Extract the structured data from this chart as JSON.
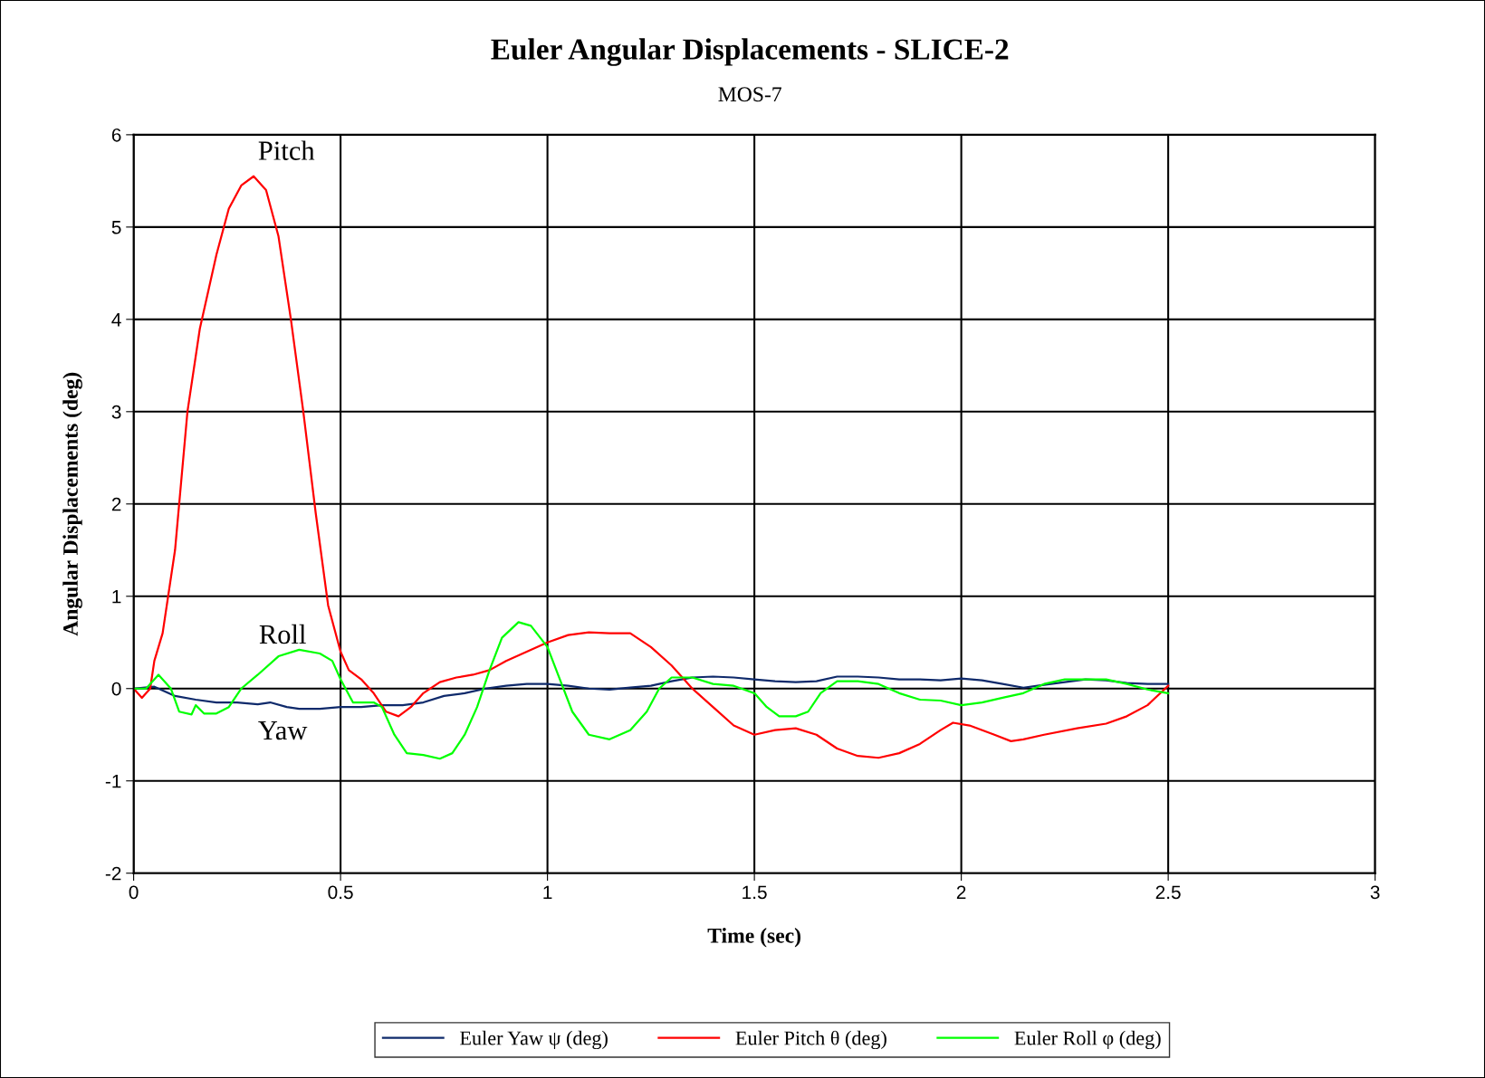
{
  "chart_data": {
    "type": "line",
    "title": "Euler Angular Displacements - SLICE-2",
    "subtitle": "MOS-7",
    "xlabel": "Time (sec)",
    "ylabel": "Angular Displacements (deg)",
    "xlim": [
      0,
      3
    ],
    "xticks": [
      0,
      0.5,
      1,
      1.5,
      2,
      2.5,
      3
    ],
    "ylim": [
      -2,
      6
    ],
    "yticks": [
      -2,
      -1,
      0,
      1,
      2,
      3,
      4,
      5,
      6
    ],
    "grid": true,
    "legend": "bottom",
    "marker": "none",
    "line_style": "solid",
    "annotations": [
      "Pitch",
      "Roll",
      "Yaw"
    ],
    "series": [
      {
        "name": "Euler Yaw ψ (deg)",
        "color": "#0f2a6b",
        "x": [
          0,
          0.05,
          0.1,
          0.15,
          0.2,
          0.25,
          0.3,
          0.33,
          0.37,
          0.4,
          0.45,
          0.5,
          0.55,
          0.6,
          0.65,
          0.7,
          0.75,
          0.8,
          0.85,
          0.9,
          0.95,
          1.0,
          1.05,
          1.1,
          1.15,
          1.2,
          1.25,
          1.3,
          1.35,
          1.4,
          1.45,
          1.5,
          1.55,
          1.6,
          1.65,
          1.7,
          1.75,
          1.8,
          1.85,
          1.9,
          1.95,
          2.0,
          2.05,
          2.1,
          2.15,
          2.2,
          2.25,
          2.3,
          2.35,
          2.4,
          2.45,
          2.5
        ],
        "values": [
          0,
          0.02,
          -0.08,
          -0.12,
          -0.15,
          -0.15,
          -0.17,
          -0.15,
          -0.2,
          -0.22,
          -0.22,
          -0.2,
          -0.2,
          -0.18,
          -0.18,
          -0.15,
          -0.08,
          -0.05,
          0.0,
          0.03,
          0.05,
          0.05,
          0.03,
          0.0,
          -0.01,
          0.01,
          0.03,
          0.08,
          0.12,
          0.13,
          0.12,
          0.1,
          0.08,
          0.07,
          0.08,
          0.13,
          0.13,
          0.12,
          0.1,
          0.1,
          0.09,
          0.11,
          0.09,
          0.05,
          0.01,
          0.04,
          0.07,
          0.1,
          0.09,
          0.06,
          0.05,
          0.05
        ]
      },
      {
        "name": "Euler Pitch θ (deg)",
        "color": "#ff0000",
        "x": [
          0,
          0.02,
          0.04,
          0.05,
          0.07,
          0.1,
          0.13,
          0.16,
          0.2,
          0.23,
          0.26,
          0.29,
          0.32,
          0.35,
          0.38,
          0.41,
          0.44,
          0.47,
          0.5,
          0.52,
          0.55,
          0.58,
          0.61,
          0.64,
          0.67,
          0.7,
          0.74,
          0.78,
          0.82,
          0.86,
          0.9,
          0.95,
          1.0,
          1.05,
          1.1,
          1.15,
          1.2,
          1.25,
          1.3,
          1.35,
          1.4,
          1.45,
          1.5,
          1.55,
          1.6,
          1.65,
          1.7,
          1.75,
          1.8,
          1.85,
          1.9,
          1.95,
          1.98,
          2.02,
          2.08,
          2.12,
          2.15,
          2.2,
          2.28,
          2.35,
          2.4,
          2.45,
          2.5
        ],
        "values": [
          0,
          -0.1,
          0,
          0.3,
          0.6,
          1.5,
          3.0,
          3.9,
          4.7,
          5.2,
          5.45,
          5.55,
          5.4,
          4.9,
          4.0,
          3.0,
          1.9,
          0.9,
          0.4,
          0.2,
          0.1,
          -0.05,
          -0.25,
          -0.3,
          -0.2,
          -0.05,
          0.07,
          0.12,
          0.15,
          0.2,
          0.3,
          0.4,
          0.5,
          0.58,
          0.61,
          0.6,
          0.6,
          0.45,
          0.25,
          0.0,
          -0.2,
          -0.4,
          -0.5,
          -0.45,
          -0.43,
          -0.5,
          -0.65,
          -0.73,
          -0.75,
          -0.7,
          -0.6,
          -0.45,
          -0.37,
          -0.4,
          -0.5,
          -0.57,
          -0.55,
          -0.5,
          -0.43,
          -0.38,
          -0.3,
          -0.18,
          0.03
        ]
      },
      {
        "name": "Euler Roll φ (deg)",
        "color": "#00ff00",
        "x": [
          0,
          0.03,
          0.06,
          0.09,
          0.11,
          0.14,
          0.15,
          0.17,
          0.2,
          0.23,
          0.26,
          0.3,
          0.35,
          0.4,
          0.45,
          0.48,
          0.5,
          0.53,
          0.58,
          0.6,
          0.63,
          0.66,
          0.7,
          0.74,
          0.77,
          0.8,
          0.83,
          0.86,
          0.89,
          0.93,
          0.96,
          1.0,
          1.03,
          1.06,
          1.1,
          1.15,
          1.2,
          1.24,
          1.27,
          1.3,
          1.35,
          1.4,
          1.45,
          1.5,
          1.53,
          1.56,
          1.6,
          1.63,
          1.66,
          1.7,
          1.75,
          1.8,
          1.85,
          1.9,
          1.95,
          2.0,
          2.05,
          2.1,
          2.15,
          2.2,
          2.25,
          2.3,
          2.35,
          2.4,
          2.45,
          2.5
        ],
        "values": [
          0,
          0,
          0.15,
          0.0,
          -0.25,
          -0.28,
          -0.18,
          -0.27,
          -0.27,
          -0.2,
          0.0,
          0.15,
          0.35,
          0.42,
          0.38,
          0.3,
          0.1,
          -0.15,
          -0.15,
          -0.2,
          -0.5,
          -0.7,
          -0.72,
          -0.76,
          -0.7,
          -0.5,
          -0.2,
          0.2,
          0.55,
          0.72,
          0.68,
          0.45,
          0.1,
          -0.25,
          -0.5,
          -0.55,
          -0.45,
          -0.25,
          0.0,
          0.12,
          0.12,
          0.05,
          0.03,
          -0.05,
          -0.2,
          -0.3,
          -0.3,
          -0.25,
          -0.05,
          0.08,
          0.08,
          0.05,
          -0.05,
          -0.12,
          -0.13,
          -0.18,
          -0.15,
          -0.1,
          -0.05,
          0.05,
          0.1,
          0.1,
          0.1,
          0.05,
          -0.01,
          -0.05
        ]
      }
    ]
  }
}
